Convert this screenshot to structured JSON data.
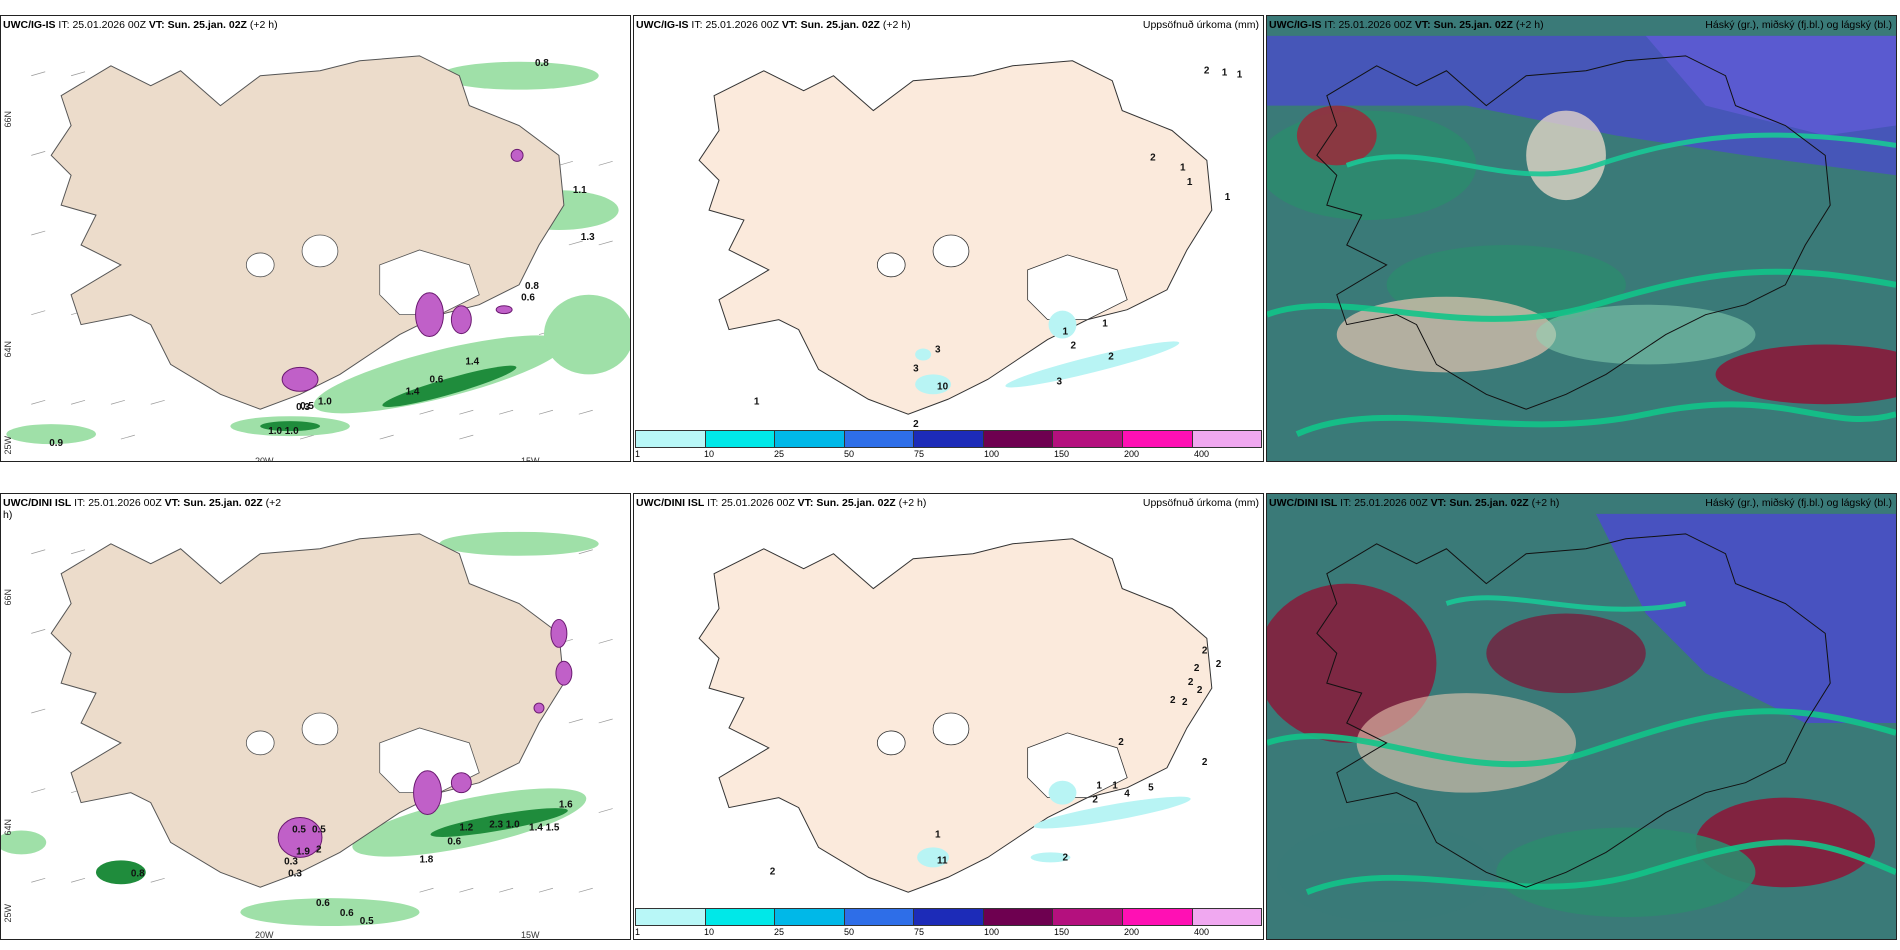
{
  "rows": [
    {
      "model": "UWC/IG-IS",
      "it_label": "IT:",
      "it_value": "25.01.2026 00Z",
      "vt_label": "VT:",
      "vt_value": "Sun. 25.jan. 02Z",
      "lead": "(+2 h)",
      "precip_title": "Uppsöfnuð úrkoma (mm)",
      "cloud_title": "Háský (gr.), miðský (fj.bl.) og lágský (bl.)",
      "wind_values": [
        "0.8",
        "1.1",
        "1.3",
        "0.8",
        "0.6",
        "1.4",
        "1.4",
        "0.6",
        "1.0",
        "0.5",
        "0.3",
        "1.0 1.0",
        "0.9"
      ],
      "precip_values": [
        "2",
        "1",
        "1",
        "2",
        "1",
        "1",
        "1",
        "2",
        "3",
        "3",
        "10",
        "1",
        "2",
        "1",
        "3",
        "2",
        "1"
      ]
    },
    {
      "model": "UWC/DINI ISL",
      "it_label": "IT:",
      "it_value": "25.01.2026 00Z",
      "vt_label": "VT:",
      "vt_value": "Sun. 25.jan. 02Z",
      "lead": "(+2 h)",
      "precip_title": "Uppsöfnuð úrkoma (mm)",
      "cloud_title": "Háský (gr.), miðský (fj.bl.) og lágský (bl.)",
      "wind_values": [
        "1.6",
        "1.2",
        "2.3 1.0",
        "1.4 1.5",
        "0.6",
        "1.8",
        "0.5",
        "0.5",
        "2",
        "1.9",
        "0.3",
        "0.3",
        "0.6",
        "0.6",
        "0.5",
        "0.8"
      ],
      "precip_values": [
        "2",
        "2",
        "2",
        "2",
        "2",
        "2",
        "2",
        "2",
        "1",
        "1",
        "2",
        "4",
        "5",
        "2",
        "2",
        "1",
        "11",
        "2"
      ]
    }
  ],
  "axis_labels": {
    "lat_66": "66N",
    "lat_64": "64N",
    "lon_25": "25W",
    "lon_20": "20W",
    "lon_15": "15W"
  },
  "legend": {
    "ticks": [
      "1",
      "10",
      "25",
      "50",
      "75",
      "100",
      "150",
      "200",
      "400"
    ],
    "colors": [
      "#b8f7f7",
      "#00e8e8",
      "#00b8e8",
      "#2e6ee8",
      "#1c2bb8",
      "#6e0050",
      "#b4107e",
      "#ff10b4",
      "#f0a8f0"
    ]
  },
  "colors": {
    "land": "#ecdccb",
    "land_light": "#fbeadc",
    "wind_green": "#9fe0a8",
    "wind_dark": "#1f8c3c",
    "precip_cyan": "#b8f4f4",
    "cloud_teal": "#2e8a6e",
    "cloud_blue": "#4a4ec8",
    "cloud_red": "#8a1a3a"
  }
}
